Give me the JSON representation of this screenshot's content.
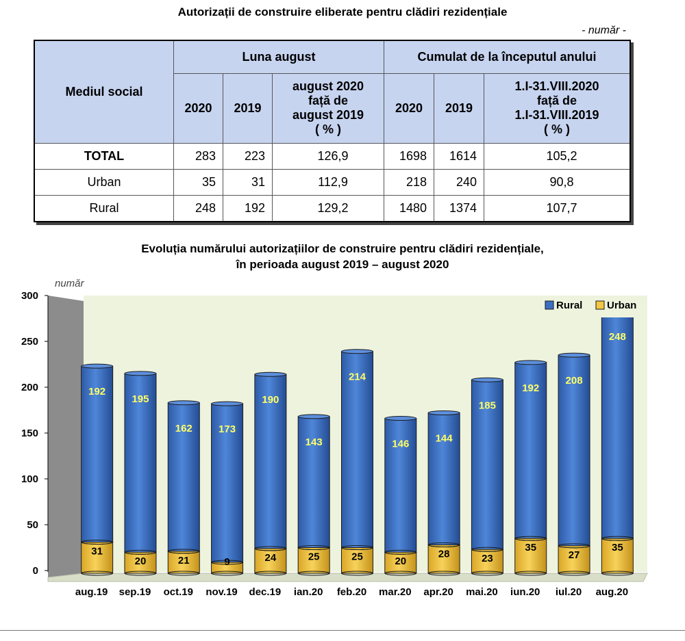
{
  "table": {
    "title": "Autorizații de construire eliberate pentru clădiri rezidențiale",
    "unit": "- număr -",
    "row_header": "Mediul social",
    "group_august": "Luna august",
    "group_cumulative": "Cumulat de la începutul anului",
    "col_2020": "2020",
    "col_2019": "2019",
    "col_aug_ratio": [
      "august 2020",
      "față de",
      "august 2019",
      "( % )"
    ],
    "col_cum_ratio": [
      "1.I-31.VIII.2020",
      "față de",
      "1.I-31.VIII.2019",
      "( % )"
    ],
    "rows": [
      {
        "label": "TOTAL",
        "aug2020": "283",
        "aug2019": "223",
        "aug_pct": "126,9",
        "cum2020": "1698",
        "cum2019": "1614",
        "cum_pct": "105,2"
      },
      {
        "label": "Urban",
        "aug2020": "35",
        "aug2019": "31",
        "aug_pct": "112,9",
        "cum2020": "218",
        "cum2019": "240",
        "cum_pct": "90,8"
      },
      {
        "label": "Rural",
        "aug2020": "248",
        "aug2019": "192",
        "aug_pct": "129,2",
        "cum2020": "1480",
        "cum2019": "1374",
        "cum_pct": "107,7"
      }
    ]
  },
  "chart_title_line1": "Evoluția numărului autorizațiilor de construire pentru clădiri rezidențiale,",
  "chart_title_line2": "în perioada august 2019 – august 2020",
  "chart_data": {
    "type": "bar",
    "stacked": true,
    "ylabel": "număr",
    "ylim": [
      0,
      300
    ],
    "yticks": [
      0,
      50,
      100,
      150,
      200,
      250,
      300
    ],
    "categories": [
      "aug.19",
      "sep.19",
      "oct.19",
      "nov.19",
      "dec.19",
      "ian.20",
      "feb.20",
      "mar.20",
      "apr.20",
      "mai.20",
      "iun.20",
      "iul.20",
      "aug.20"
    ],
    "series": [
      {
        "name": "Urban",
        "color": "#f2c744",
        "values": [
          31,
          20,
          21,
          9,
          24,
          25,
          25,
          20,
          28,
          23,
          35,
          27,
          35
        ]
      },
      {
        "name": "Rural",
        "color": "#3a6fc4",
        "values": [
          192,
          195,
          162,
          173,
          190,
          143,
          214,
          146,
          144,
          185,
          192,
          208,
          248
        ]
      }
    ],
    "legend_position": "top-right",
    "label_color": "#ffff66",
    "plot_background": "#eef3de",
    "wall_color": "#8c8c8c"
  }
}
